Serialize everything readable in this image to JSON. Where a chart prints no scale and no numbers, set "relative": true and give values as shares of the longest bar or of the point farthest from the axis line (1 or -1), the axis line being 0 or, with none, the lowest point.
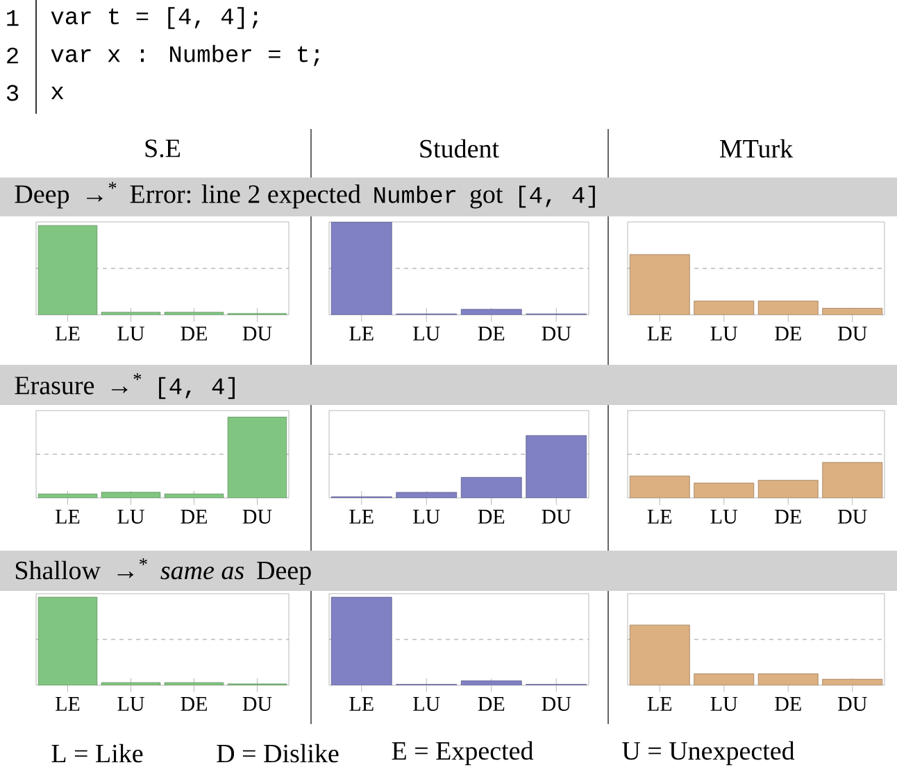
{
  "chart_data": [
    {
      "type": "bar",
      "title": "S.E",
      "relative": true,
      "categories": [
        "LE",
        "LU",
        "DE",
        "DU"
      ],
      "values": [
        1,
        0.03,
        0.03,
        0.015
      ],
      "color": "#80c680",
      "ref_lines": [
        {
          "axis": "y",
          "value": 0.52,
          "color": "#999999",
          "line_style": "dashed"
        }
      ],
      "annotations": [
        "1",
        "var t = [4, 4];",
        "2",
        "var x : Number = t;",
        "3",
        "x",
        "Deep",
        "→$^{*}$",
        "Error: line 2 expected",
        "Number",
        "got",
        "[4, 4]"
      ]
    },
    {
      "type": "bar",
      "title": "Student",
      "relative": true,
      "categories": [
        "LE",
        "LU",
        "DE",
        "DU"
      ],
      "values": [
        1,
        0.01,
        0.06,
        0.01
      ],
      "color": "#8080c4",
      "ref_lines": [
        {
          "axis": "y",
          "value": 0.5,
          "color": "#999999",
          "line_style": "dashed"
        }
      ]
    },
    {
      "type": "bar",
      "title": "MTurk",
      "relative": true,
      "categories": [
        "LE",
        "LU",
        "DE",
        "DU"
      ],
      "values": [
        1,
        0.23,
        0.23,
        0.11
      ],
      "color": "#dcb080",
      "ref_lines": [
        {
          "axis": "y",
          "value": 0.77,
          "color": "#999999",
          "line_style": "dashed"
        }
      ]
    },
    {
      "type": "bar",
      "relative": true,
      "categories": [
        "LE",
        "LU",
        "DE",
        "DU"
      ],
      "values": [
        0.05,
        0.07,
        0.05,
        1
      ],
      "color": "#80c680",
      "ref_lines": [
        {
          "axis": "y",
          "value": 0.54,
          "color": "#999999",
          "line_style": "dashed"
        }
      ],
      "annotations": [
        "Erasure",
        "→$^{*}$",
        "[4, 4]"
      ]
    },
    {
      "type": "bar",
      "relative": true,
      "categories": [
        "LE",
        "LU",
        "DE",
        "DU"
      ],
      "values": [
        0.02,
        0.09,
        0.33,
        1
      ],
      "color": "#8080c4",
      "ref_lines": [
        {
          "axis": "y",
          "value": 0.7,
          "color": "#999999",
          "line_style": "dashed"
        }
      ]
    },
    {
      "type": "bar",
      "relative": true,
      "categories": [
        "LE",
        "LU",
        "DE",
        "DU"
      ],
      "values": [
        0.62,
        0.42,
        0.5,
        1
      ],
      "color": "#dcb080",
      "ref_lines": [
        {
          "axis": "y",
          "value": 1.23,
          "color": "#999999",
          "line_style": "dashed"
        }
      ]
    },
    {
      "type": "bar",
      "relative": true,
      "categories": [
        "LE",
        "LU",
        "DE",
        "DU"
      ],
      "values": [
        1,
        0.03,
        0.03,
        0.015
      ],
      "color": "#80c680",
      "ref_lines": [
        {
          "axis": "y",
          "value": 0.52,
          "color": "#999999",
          "line_style": "dashed"
        }
      ],
      "annotations": [
        "Shallow",
        "→$^{*}$",
        "same as",
        "Deep"
      ]
    },
    {
      "type": "bar",
      "relative": true,
      "categories": [
        "LE",
        "LU",
        "DE",
        "DU"
      ],
      "values": [
        1,
        0.01,
        0.05,
        0.01
      ],
      "color": "#8080c4",
      "ref_lines": [
        {
          "axis": "y",
          "value": 0.52,
          "color": "#999999",
          "line_style": "dashed"
        }
      ]
    },
    {
      "type": "bar",
      "relative": true,
      "categories": [
        "LE",
        "LU",
        "DE",
        "DU"
      ],
      "values": [
        1,
        0.19,
        0.19,
        0.1
      ],
      "color": "#dcb080",
      "ref_lines": [
        {
          "axis": "y",
          "value": 0.76,
          "color": "#999999",
          "line_style": "dashed"
        }
      ],
      "annotations": [
        "L = Like",
        "D = Dislike",
        "E = Expected",
        "U = Unexpected"
      ]
    }
  ]
}
